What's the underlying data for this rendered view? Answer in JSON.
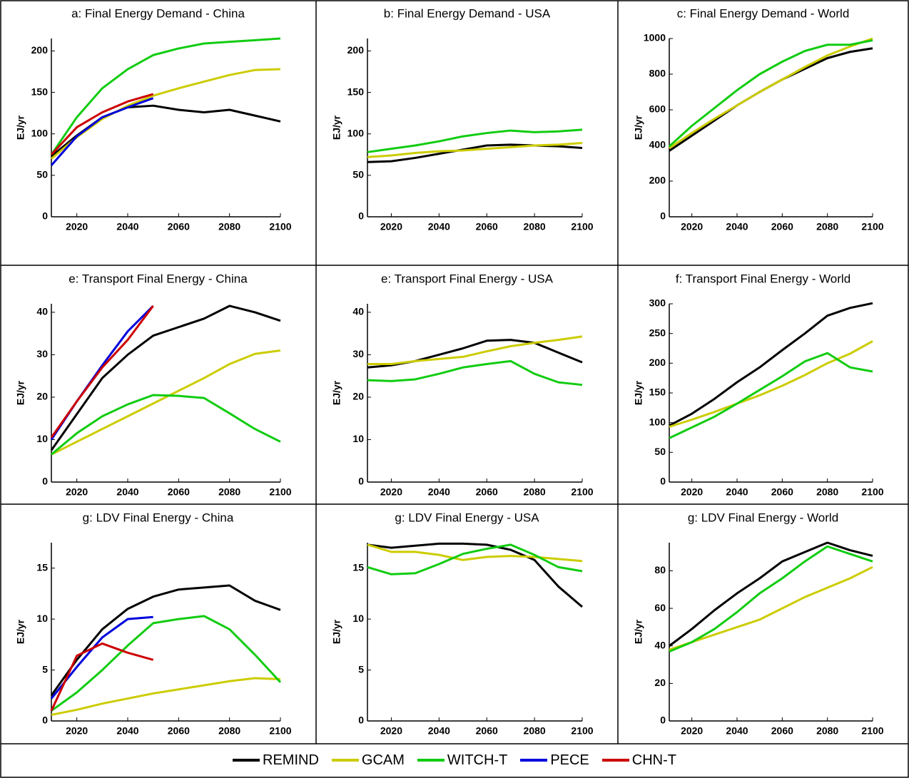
{
  "legend": {
    "series": [
      {
        "name": "REMIND",
        "color": "#000000"
      },
      {
        "name": "GCAM",
        "color": "#cccc00"
      },
      {
        "name": "WITCH-T",
        "color": "#11cc11"
      },
      {
        "name": "PECE",
        "color": "#0000dd"
      },
      {
        "name": "CHN-T",
        "color": "#cc0000"
      }
    ]
  },
  "chart_data": [
    {
      "type": "line",
      "title": "a: Final Energy Demand - China",
      "y_label": "EJ/yr",
      "x": [
        2010,
        2020,
        2030,
        2040,
        2050,
        2060,
        2070,
        2080,
        2090,
        2100
      ],
      "xlim": [
        2010,
        2100
      ],
      "xticks": [
        2020,
        2040,
        2060,
        2080,
        2100
      ],
      "ylim": [
        0,
        215
      ],
      "yticks": [
        0,
        50,
        100,
        150,
        200
      ],
      "series": [
        {
          "name": "REMIND",
          "values": [
            73,
            98,
            120,
            132,
            134,
            129,
            126,
            129,
            122,
            115
          ]
        },
        {
          "name": "GCAM",
          "values": [
            70,
            96,
            118,
            134,
            146,
            155,
            163,
            171,
            177,
            178
          ]
        },
        {
          "name": "WITCH-T",
          "values": [
            75,
            120,
            155,
            178,
            195,
            203,
            209,
            211,
            213,
            215
          ]
        },
        {
          "name": "PECE",
          "values": [
            62,
            97,
            120,
            132,
            143,
            null,
            null,
            null,
            null,
            null
          ]
        },
        {
          "name": "CHN-T",
          "values": [
            75,
            108,
            126,
            139,
            148,
            null,
            null,
            null,
            null,
            null
          ]
        }
      ]
    },
    {
      "type": "line",
      "title": "b: Final Energy Demand - USA",
      "y_label": "EJ/yr",
      "x": [
        2010,
        2020,
        2030,
        2040,
        2050,
        2060,
        2070,
        2080,
        2090,
        2100
      ],
      "xlim": [
        2010,
        2100
      ],
      "xticks": [
        2020,
        2040,
        2060,
        2080,
        2100
      ],
      "ylim": [
        0,
        215
      ],
      "yticks": [
        0,
        50,
        100,
        150,
        200
      ],
      "series": [
        {
          "name": "REMIND",
          "values": [
            66,
            67,
            71,
            76,
            81,
            86,
            87,
            86,
            85,
            83
          ]
        },
        {
          "name": "GCAM",
          "values": [
            72,
            74,
            77,
            79,
            80,
            82,
            84,
            86,
            87,
            89
          ]
        },
        {
          "name": "WITCH-T",
          "values": [
            78,
            82,
            86,
            91,
            97,
            101,
            104,
            102,
            103,
            105
          ]
        }
      ]
    },
    {
      "type": "line",
      "title": "c: Final Energy Demand - World",
      "y_label": "EJ/yr",
      "x": [
        2010,
        2020,
        2030,
        2040,
        2050,
        2060,
        2070,
        2080,
        2090,
        2100
      ],
      "xlim": [
        2010,
        2100
      ],
      "xticks": [
        2020,
        2040,
        2060,
        2080,
        2100
      ],
      "ylim": [
        0,
        1000
      ],
      "yticks": [
        0,
        200,
        400,
        600,
        800,
        1000
      ],
      "series": [
        {
          "name": "REMIND",
          "values": [
            370,
            455,
            540,
            625,
            700,
            770,
            830,
            890,
            925,
            945
          ]
        },
        {
          "name": "GCAM",
          "values": [
            385,
            470,
            550,
            625,
            700,
            770,
            840,
            905,
            955,
            1000
          ]
        },
        {
          "name": "WITCH-T",
          "values": [
            395,
            510,
            610,
            710,
            800,
            870,
            930,
            965,
            965,
            990
          ]
        }
      ]
    },
    {
      "type": "line",
      "title": "e: Transport Final Energy - China",
      "y_label": "EJ/yr",
      "x": [
        2010,
        2020,
        2030,
        2040,
        2050,
        2060,
        2070,
        2080,
        2090,
        2100
      ],
      "xlim": [
        2010,
        2100
      ],
      "xticks": [
        2020,
        2040,
        2060,
        2080,
        2100
      ],
      "ylim": [
        0,
        42
      ],
      "yticks": [
        0,
        10,
        20,
        30,
        40
      ],
      "series": [
        {
          "name": "REMIND",
          "values": [
            7.5,
            16,
            24.5,
            30,
            34.5,
            36.5,
            38.5,
            41.5,
            40,
            38
          ]
        },
        {
          "name": "GCAM",
          "values": [
            6.5,
            9.5,
            12.5,
            15.5,
            18.5,
            21.5,
            24.5,
            27.8,
            30.2,
            31
          ]
        },
        {
          "name": "WITCH-T",
          "values": [
            6.5,
            11.5,
            15.5,
            18.3,
            20.5,
            20.3,
            19.8,
            16.2,
            12.5,
            9.5
          ]
        },
        {
          "name": "PECE",
          "values": [
            10,
            19,
            27.5,
            35.5,
            41.5,
            null,
            null,
            null,
            null,
            null
          ]
        },
        {
          "name": "CHN-T",
          "values": [
            10.5,
            19,
            27,
            33.5,
            41.5,
            null,
            null,
            null,
            null,
            null
          ]
        }
      ]
    },
    {
      "type": "line",
      "title": "e: Transport Final Energy - USA",
      "y_label": "EJ/yr",
      "x": [
        2010,
        2020,
        2030,
        2040,
        2050,
        2060,
        2070,
        2080,
        2090,
        2100
      ],
      "xlim": [
        2010,
        2100
      ],
      "xticks": [
        2020,
        2040,
        2060,
        2080,
        2100
      ],
      "ylim": [
        0,
        42
      ],
      "yticks": [
        0,
        10,
        20,
        30,
        40
      ],
      "series": [
        {
          "name": "REMIND",
          "values": [
            27,
            27.5,
            28.5,
            30,
            31.5,
            33.3,
            33.5,
            32.8,
            30.5,
            28.2
          ]
        },
        {
          "name": "GCAM",
          "values": [
            27.8,
            27.8,
            28.5,
            29,
            29.5,
            30.8,
            32,
            32.8,
            33.5,
            34.3
          ]
        },
        {
          "name": "WITCH-T",
          "values": [
            24,
            23.8,
            24.2,
            25.5,
            27,
            27.8,
            28.5,
            25.5,
            23.5,
            22.9
          ]
        }
      ]
    },
    {
      "type": "line",
      "title": "f: Transport Final Energy - World",
      "y_label": "EJ/yr",
      "x": [
        2010,
        2020,
        2030,
        2040,
        2050,
        2060,
        2070,
        2080,
        2090,
        2100
      ],
      "xlim": [
        2010,
        2100
      ],
      "xticks": [
        2020,
        2040,
        2060,
        2080,
        2100
      ],
      "ylim": [
        0,
        300
      ],
      "yticks": [
        0,
        50,
        100,
        150,
        200,
        250,
        300
      ],
      "series": [
        {
          "name": "REMIND",
          "values": [
            95,
            115,
            140,
            168,
            193,
            222,
            250,
            280,
            293,
            301
          ]
        },
        {
          "name": "GCAM",
          "values": [
            93,
            105,
            118,
            132,
            146,
            162,
            180,
            200,
            216,
            237
          ]
        },
        {
          "name": "WITCH-T",
          "values": [
            74,
            92,
            110,
            132,
            155,
            178,
            203,
            217,
            193,
            186
          ]
        }
      ]
    },
    {
      "type": "line",
      "title": "g: LDV Final Energy - China",
      "y_label": "EJ/yr",
      "x": [
        2010,
        2020,
        2030,
        2040,
        2050,
        2060,
        2070,
        2080,
        2090,
        2100
      ],
      "xlim": [
        2010,
        2100
      ],
      "xticks": [
        2020,
        2040,
        2060,
        2080,
        2100
      ],
      "ylim": [
        0,
        17.5
      ],
      "yticks": [
        0,
        5,
        10,
        15
      ],
      "series": [
        {
          "name": "REMIND",
          "values": [
            2.5,
            6,
            9,
            11,
            12.2,
            12.9,
            13.1,
            13.3,
            11.8,
            10.9
          ]
        },
        {
          "name": "GCAM",
          "values": [
            0.6,
            1.1,
            1.7,
            2.2,
            2.7,
            3.1,
            3.5,
            3.9,
            4.2,
            4.1
          ]
        },
        {
          "name": "WITCH-T",
          "values": [
            1,
            2.8,
            5,
            7.4,
            9.6,
            10,
            10.3,
            9,
            6.5,
            3.8
          ]
        },
        {
          "name": "PECE",
          "values": [
            2.2,
            5.3,
            8.2,
            10,
            10.2,
            null,
            null,
            null,
            null,
            null
          ]
        },
        {
          "name": "CHN-T",
          "values": [
            1,
            6.4,
            7.6,
            6.7,
            6,
            null,
            null,
            null,
            null,
            null
          ]
        }
      ]
    },
    {
      "type": "line",
      "title": "g: LDV Final Energy - USA",
      "y_label": "EJ/yr",
      "x": [
        2010,
        2020,
        2030,
        2040,
        2050,
        2060,
        2070,
        2080,
        2090,
        2100
      ],
      "xlim": [
        2010,
        2100
      ],
      "xticks": [
        2020,
        2040,
        2060,
        2080,
        2100
      ],
      "ylim": [
        0,
        17.5
      ],
      "yticks": [
        0,
        5,
        10,
        15
      ],
      "series": [
        {
          "name": "REMIND",
          "values": [
            17.3,
            17,
            17.2,
            17.4,
            17.4,
            17.3,
            16.8,
            15.8,
            13.2,
            11.2
          ]
        },
        {
          "name": "GCAM",
          "values": [
            17.3,
            16.6,
            16.6,
            16.3,
            15.8,
            16.1,
            16.2,
            16.1,
            15.9,
            15.7
          ]
        },
        {
          "name": "WITCH-T",
          "values": [
            15.1,
            14.4,
            14.5,
            15.4,
            16.4,
            16.9,
            17.3,
            16.3,
            15.1,
            14.7
          ]
        }
      ]
    },
    {
      "type": "line",
      "title": "g: LDV Final Energy - World",
      "y_label": "EJ/yr",
      "x": [
        2010,
        2020,
        2030,
        2040,
        2050,
        2060,
        2070,
        2080,
        2090,
        2100
      ],
      "xlim": [
        2010,
        2100
      ],
      "xticks": [
        2020,
        2040,
        2060,
        2080,
        2100
      ],
      "ylim": [
        0,
        95
      ],
      "yticks": [
        0,
        20,
        40,
        60,
        80
      ],
      "series": [
        {
          "name": "REMIND",
          "values": [
            40,
            49,
            59,
            68,
            76,
            85,
            90,
            95,
            91,
            88
          ]
        },
        {
          "name": "GCAM",
          "values": [
            38,
            42,
            46,
            50,
            54,
            60,
            66,
            71,
            76,
            82
          ]
        },
        {
          "name": "WITCH-T",
          "values": [
            37,
            42,
            49,
            58,
            68,
            76,
            85,
            93,
            89,
            85
          ]
        }
      ]
    }
  ]
}
